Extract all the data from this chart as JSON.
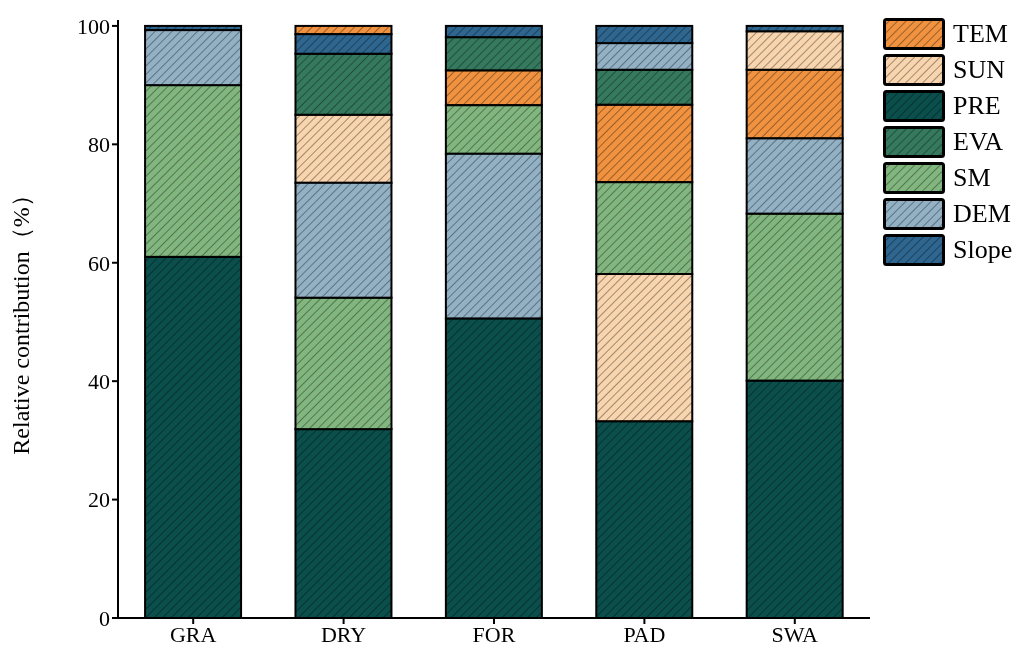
{
  "chart_data": {
    "type": "bar",
    "ylabel": "Relative contribution（%）",
    "categories": [
      "GRA",
      "DRY",
      "FOR",
      "PAD",
      "SWA"
    ],
    "series": [
      {
        "name": "TEM",
        "color": "#f0923f",
        "values": [
          null,
          1.4,
          5.9,
          13.1,
          11.6
        ],
        "base": [
          null,
          98.6,
          86.6,
          73.6,
          81
        ]
      },
      {
        "name": "SUN",
        "color": "#f8d5ae",
        "values": [
          null,
          11.5,
          null,
          24.9,
          6.5
        ],
        "base": [
          null,
          73.5,
          null,
          33.2,
          92.6
        ]
      },
      {
        "name": "PRE",
        "color": "#0a4f4c",
        "values": [
          61,
          31.9,
          50.6,
          33.2,
          40.1
        ],
        "base": [
          0,
          0,
          0,
          0,
          0
        ]
      },
      {
        "name": "EVA",
        "color": "#357a5e",
        "values": [
          null,
          10.3,
          5.6,
          5.9,
          null
        ],
        "base": [
          null,
          85,
          92.5,
          86.7,
          null
        ]
      },
      {
        "name": "SM",
        "color": "#82b67f",
        "values": [
          29,
          22.2,
          8.2,
          15.5,
          28.2
        ],
        "base": [
          61,
          31.9,
          78.4,
          58.1,
          40.1
        ]
      },
      {
        "name": "DEM",
        "color": "#93b1c4",
        "values": [
          9.3,
          19.4,
          27.8,
          4.5,
          12.7
        ],
        "base": [
          90,
          54.1,
          50.6,
          92.6,
          68.3
        ]
      },
      {
        "name": "Slope",
        "color": "#2e668f",
        "values": [
          0.7,
          3.3,
          1.9,
          2.9,
          0.9
        ],
        "base": [
          99.3,
          95.3,
          98.1,
          97.1,
          99.1
        ]
      }
    ],
    "ylim": [
      0,
      101
    ],
    "yticks": [
      0,
      20,
      40,
      60,
      80,
      100
    ],
    "grid": false,
    "legend": "top right"
  }
}
